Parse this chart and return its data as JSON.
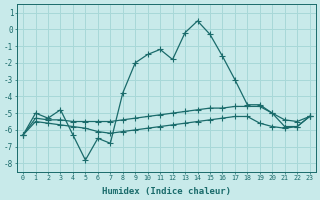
{
  "xlabel": "Humidex (Indice chaleur)",
  "bg_color": "#c8eaea",
  "grid_color": "#a8d8d8",
  "line_color": "#1a6b6b",
  "xlim": [
    -0.5,
    23.5
  ],
  "ylim": [
    -8.5,
    1.5
  ],
  "yticks": [
    1,
    0,
    -1,
    -2,
    -3,
    -4,
    -5,
    -6,
    -7,
    -8
  ],
  "xticks": [
    0,
    1,
    2,
    3,
    4,
    5,
    6,
    7,
    8,
    9,
    10,
    11,
    12,
    13,
    14,
    15,
    16,
    17,
    18,
    19,
    20,
    21,
    22,
    23
  ],
  "series1_x": [
    0,
    1,
    2,
    3,
    4,
    5,
    6,
    7,
    8,
    9,
    10,
    11,
    12,
    13,
    14,
    15,
    16,
    17,
    18,
    19,
    20,
    21,
    22,
    23
  ],
  "series1_y": [
    -6.3,
    -5.0,
    -5.3,
    -4.8,
    -6.3,
    -7.8,
    -6.5,
    -6.8,
    -3.8,
    -2.0,
    -1.5,
    -1.2,
    -1.8,
    -0.2,
    0.5,
    -0.3,
    -1.6,
    -3.0,
    -4.5,
    -4.5,
    -5.0,
    -5.8,
    -5.8,
    -5.2
  ],
  "series2_x": [
    0,
    1,
    2,
    3,
    4,
    5,
    6,
    7,
    8,
    9,
    10,
    11,
    12,
    13,
    14,
    15,
    16,
    17,
    18,
    19,
    20,
    21,
    22,
    23
  ],
  "series2_y": [
    -6.3,
    -5.3,
    -5.4,
    -5.4,
    -5.5,
    -5.5,
    -5.5,
    -5.5,
    -5.4,
    -5.3,
    -5.2,
    -5.1,
    -5.0,
    -4.9,
    -4.8,
    -4.7,
    -4.7,
    -4.6,
    -4.6,
    -4.6,
    -5.0,
    -5.4,
    -5.5,
    -5.2
  ],
  "series3_x": [
    0,
    1,
    2,
    3,
    4,
    5,
    6,
    7,
    8,
    9,
    10,
    11,
    12,
    13,
    14,
    15,
    16,
    17,
    18,
    19,
    20,
    21,
    22,
    23
  ],
  "series3_y": [
    -6.3,
    -5.5,
    -5.6,
    -5.7,
    -5.8,
    -5.9,
    -6.1,
    -6.2,
    -6.1,
    -6.0,
    -5.9,
    -5.8,
    -5.7,
    -5.6,
    -5.5,
    -5.4,
    -5.3,
    -5.2,
    -5.2,
    -5.6,
    -5.8,
    -5.9,
    -5.8,
    -5.2
  ]
}
